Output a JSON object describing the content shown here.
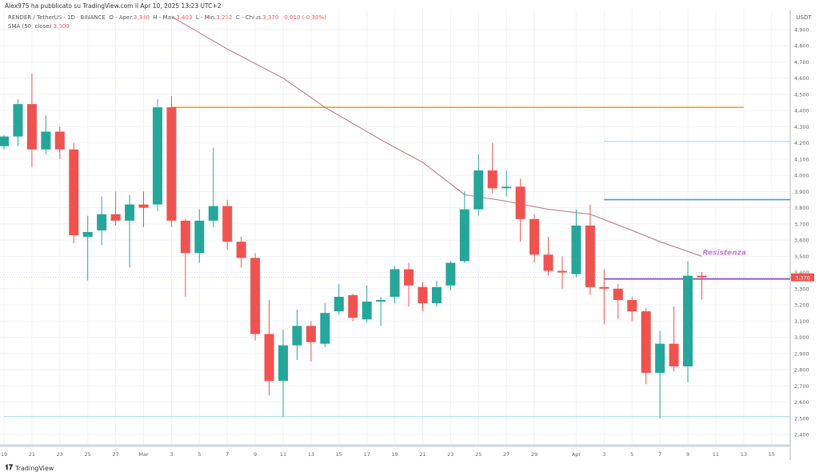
{
  "header": {
    "published": "Alex975 ha pubblicato su TradingView.com il Apr 10, 2025 13:23 UTC+2",
    "symbol": "RENDER / TetherUS · 1D · BINANCE",
    "open_label": "O - Aper.",
    "open": "3,380",
    "high_label": "H - Max.",
    "high": "3,403",
    "low_label": "L - Min.",
    "low": "3,232",
    "close_label": "C - Chius.",
    "close": "3,370",
    "change": "-0,010 (-0,30%)",
    "sma_label": "SMA (50, close)",
    "sma_value": "3,500"
  },
  "footer": {
    "logo": "TradingView",
    "logo_mark": "17"
  },
  "colors": {
    "up": "#26a69a",
    "down": "#ef5350",
    "sma": "#c0707a",
    "orange": "#f7a21b",
    "lightblue": "#9fdcea",
    "blue": "#4a9cc4",
    "purple": "#7e3fbf",
    "annotation": "#c77fd6"
  },
  "chart_data": {
    "type": "candlestick",
    "title": "RENDER / TetherUS · 1D · BINANCE",
    "ylabel": "USDT",
    "ylim": [
      2.32,
      4.99
    ],
    "yticks": [
      "4,900",
      "4,800",
      "4,700",
      "4,600",
      "4,500",
      "4,400",
      "4,300",
      "4,200",
      "4,100",
      "4,000",
      "3,900",
      "3,800",
      "3,700",
      "3,600",
      "3,500",
      "3,400",
      "3,300",
      "3,200",
      "3,100",
      "3,000",
      "2,900",
      "2,800",
      "2,700",
      "2,600",
      "2,500",
      "2,400"
    ],
    "ytick_values": [
      4.9,
      4.8,
      4.7,
      4.6,
      4.5,
      4.4,
      4.3,
      4.2,
      4.1,
      4.0,
      3.9,
      3.8,
      3.7,
      3.6,
      3.5,
      3.4,
      3.3,
      3.2,
      3.1,
      3.0,
      2.9,
      2.8,
      2.7,
      2.6,
      2.5,
      2.4
    ],
    "start_date": "Feb 19",
    "xticks": [
      {
        "day": 0,
        "label": "19"
      },
      {
        "day": 2,
        "label": "21"
      },
      {
        "day": 4,
        "label": "23"
      },
      {
        "day": 6,
        "label": "25"
      },
      {
        "day": 8,
        "label": "27"
      },
      {
        "day": 10,
        "label": "Mar"
      },
      {
        "day": 12,
        "label": "3"
      },
      {
        "day": 14,
        "label": "5"
      },
      {
        "day": 16,
        "label": "7"
      },
      {
        "day": 18,
        "label": "9"
      },
      {
        "day": 20,
        "label": "11"
      },
      {
        "day": 22,
        "label": "13"
      },
      {
        "day": 24,
        "label": "15"
      },
      {
        "day": 26,
        "label": "17"
      },
      {
        "day": 28,
        "label": "19"
      },
      {
        "day": 30,
        "label": "21"
      },
      {
        "day": 32,
        "label": "23"
      },
      {
        "day": 34,
        "label": "25"
      },
      {
        "day": 36,
        "label": "27"
      },
      {
        "day": 38,
        "label": "29"
      },
      {
        "day": 41,
        "label": "Apr"
      },
      {
        "day": 43,
        "label": "3"
      },
      {
        "day": 45,
        "label": "5"
      },
      {
        "day": 47,
        "label": "7"
      },
      {
        "day": 49,
        "label": "9"
      },
      {
        "day": 51,
        "label": "11"
      },
      {
        "day": 53,
        "label": "13"
      },
      {
        "day": 55,
        "label": "15"
      }
    ],
    "ohlc": [
      [
        4.18,
        4.25,
        4.16,
        4.24
      ],
      [
        4.24,
        4.47,
        4.18,
        4.44
      ],
      [
        4.44,
        4.63,
        4.05,
        4.16
      ],
      [
        4.16,
        4.37,
        4.13,
        4.27
      ],
      [
        4.27,
        4.3,
        4.1,
        4.16
      ],
      [
        4.16,
        4.2,
        3.58,
        3.63
      ],
      [
        3.62,
        3.75,
        3.35,
        3.65
      ],
      [
        3.66,
        3.87,
        3.57,
        3.76
      ],
      [
        3.76,
        3.9,
        3.69,
        3.72
      ],
      [
        3.72,
        3.88,
        3.43,
        3.82
      ],
      [
        3.82,
        3.9,
        3.68,
        3.8
      ],
      [
        3.82,
        4.47,
        3.78,
        4.42
      ],
      [
        4.42,
        4.49,
        3.68,
        3.72
      ],
      [
        3.72,
        3.73,
        3.25,
        3.52
      ],
      [
        3.52,
        3.79,
        3.46,
        3.72
      ],
      [
        3.72,
        4.17,
        3.68,
        3.81
      ],
      [
        3.81,
        3.85,
        3.54,
        3.59
      ],
      [
        3.59,
        3.62,
        3.43,
        3.49
      ],
      [
        3.49,
        3.52,
        2.98,
        3.02
      ],
      [
        3.02,
        3.23,
        2.64,
        2.73
      ],
      [
        2.73,
        3.05,
        2.51,
        2.95
      ],
      [
        2.95,
        3.17,
        2.86,
        3.07
      ],
      [
        3.07,
        3.1,
        2.85,
        2.97
      ],
      [
        2.96,
        3.21,
        2.94,
        3.15
      ],
      [
        3.16,
        3.33,
        3.14,
        3.25
      ],
      [
        3.26,
        3.27,
        3.1,
        3.12
      ],
      [
        3.11,
        3.32,
        3.09,
        3.22
      ],
      [
        3.22,
        3.25,
        3.07,
        3.23
      ],
      [
        3.25,
        3.44,
        3.21,
        3.42
      ],
      [
        3.42,
        3.46,
        3.19,
        3.32
      ],
      [
        3.31,
        3.34,
        3.16,
        3.21
      ],
      [
        3.21,
        3.35,
        3.19,
        3.31
      ],
      [
        3.32,
        3.47,
        3.29,
        3.46
      ],
      [
        3.47,
        3.9,
        3.46,
        3.79
      ],
      [
        3.79,
        4.13,
        3.75,
        4.03
      ],
      [
        4.03,
        4.2,
        3.89,
        3.92
      ],
      [
        3.92,
        4.03,
        3.87,
        3.93
      ],
      [
        3.93,
        3.98,
        3.59,
        3.73
      ],
      [
        3.73,
        3.76,
        3.46,
        3.51
      ],
      [
        3.51,
        3.62,
        3.38,
        3.41
      ],
      [
        3.41,
        3.5,
        3.3,
        3.4
      ],
      [
        3.39,
        3.79,
        3.37,
        3.69
      ],
      [
        3.69,
        3.82,
        3.26,
        3.31
      ],
      [
        3.31,
        3.42,
        3.08,
        3.3
      ],
      [
        3.3,
        3.33,
        3.11,
        3.23
      ],
      [
        3.23,
        3.25,
        3.1,
        3.16
      ],
      [
        3.16,
        3.18,
        2.71,
        2.78
      ],
      [
        2.78,
        3.04,
        2.5,
        2.96
      ],
      [
        2.96,
        3.19,
        2.79,
        2.82
      ],
      [
        2.82,
        3.47,
        2.72,
        3.38
      ],
      [
        3.38,
        3.403,
        3.232,
        3.37
      ]
    ],
    "sma": {
      "name": "SMA (50, close)",
      "points": [
        [
          12,
          4.98
        ],
        [
          16,
          4.78
        ],
        [
          20,
          4.6
        ],
        [
          23,
          4.42
        ],
        [
          27,
          4.22
        ],
        [
          30,
          4.08
        ],
        [
          33,
          3.88
        ],
        [
          36,
          3.84
        ],
        [
          39,
          3.79
        ],
        [
          42,
          3.76
        ],
        [
          45,
          3.66
        ],
        [
          47,
          3.59
        ],
        [
          50,
          3.5
        ]
      ]
    },
    "levels": [
      {
        "name": "resistance-high",
        "price": 4.42,
        "from": 12,
        "to": 53,
        "color": "orange"
      },
      {
        "name": "level-4200",
        "price": 4.21,
        "from": 43,
        "to": 57,
        "color": "lightblue"
      },
      {
        "name": "level-3850",
        "price": 3.85,
        "from": 43,
        "to": 57,
        "color": "blue"
      },
      {
        "name": "resistance",
        "price": 3.36,
        "from": 43,
        "to": 57,
        "color": "purple"
      },
      {
        "name": "support",
        "price": 2.51,
        "from": 0,
        "to": 57,
        "color": "lightblue"
      }
    ],
    "annotation": {
      "text": "Resistenza",
      "day": 50,
      "price": 3.52
    },
    "last_price": "3,370"
  }
}
